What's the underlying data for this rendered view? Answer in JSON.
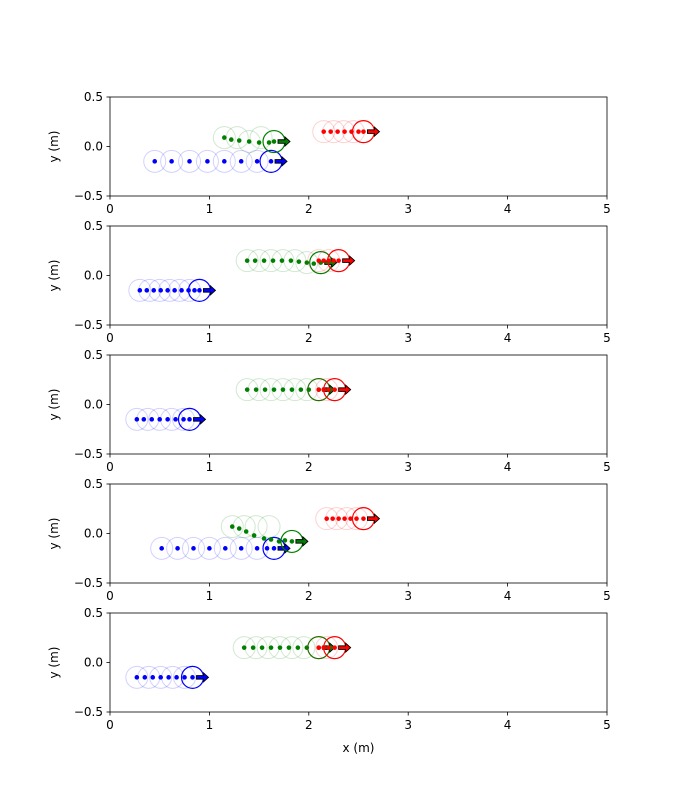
{
  "chart_data": [
    {
      "type": "scatter",
      "xlim": [
        0,
        5
      ],
      "ylim": [
        -0.5,
        0.5
      ],
      "xticks": [
        0,
        1,
        2,
        3,
        4,
        5
      ],
      "yticks": [
        0.5,
        0.0,
        -0.5
      ],
      "xlabel": "",
      "ylabel": "y (m)",
      "series": [
        {
          "color": "#0000ff",
          "y": -0.15,
          "x": [
            0.45,
            0.62,
            0.8,
            0.98,
            1.15,
            1.32,
            1.48,
            1.62
          ],
          "ghost_x": [
            0.45,
            0.62,
            0.8,
            0.98,
            1.15,
            1.32,
            1.48
          ]
        },
        {
          "color": "#008000",
          "y_path": [
            0.09,
            0.07,
            0.06,
            0.05,
            0.04,
            0.04,
            0.05
          ],
          "x": [
            1.15,
            1.22,
            1.3,
            1.4,
            1.5,
            1.6,
            1.65
          ],
          "ghost_x": [
            1.15,
            1.28,
            1.4,
            1.52
          ]
        },
        {
          "color": "#ff0000",
          "y": 0.15,
          "x": [
            2.15,
            2.22,
            2.29,
            2.36,
            2.43,
            2.5,
            2.55
          ],
          "ghost_x": [
            2.15,
            2.25,
            2.35,
            2.45
          ]
        }
      ]
    },
    {
      "type": "scatter",
      "xlim": [
        0,
        5
      ],
      "ylim": [
        -0.5,
        0.5
      ],
      "xticks": [
        0,
        1,
        2,
        3,
        4,
        5
      ],
      "yticks": [
        0.5,
        0.0,
        -0.5
      ],
      "xlabel": "",
      "ylabel": "y (m)",
      "series": [
        {
          "color": "#0000ff",
          "y": -0.15,
          "x": [
            0.3,
            0.37,
            0.44,
            0.51,
            0.58,
            0.65,
            0.72,
            0.79,
            0.85,
            0.9
          ],
          "ghost_x": [
            0.3,
            0.4,
            0.5,
            0.6,
            0.7,
            0.8
          ]
        },
        {
          "color": "#008000",
          "y_path": [
            0.15,
            0.15,
            0.15,
            0.15,
            0.15,
            0.15,
            0.14,
            0.13,
            0.12,
            0.13
          ],
          "x": [
            1.38,
            1.46,
            1.55,
            1.64,
            1.73,
            1.82,
            1.9,
            1.98,
            2.05,
            2.12
          ],
          "ghost_x": [
            1.38,
            1.5,
            1.62,
            1.74,
            1.86,
            1.98
          ]
        },
        {
          "color": "#ff0000",
          "y": 0.15,
          "x": [
            2.1,
            2.15,
            2.2,
            2.25,
            2.3
          ],
          "ghost_x": [
            2.1,
            2.2
          ]
        }
      ]
    },
    {
      "type": "scatter",
      "xlim": [
        0,
        5
      ],
      "ylim": [
        -0.5,
        0.5
      ],
      "xticks": [
        0,
        1,
        2,
        3,
        4,
        5
      ],
      "yticks": [
        0.5,
        0.0,
        -0.5
      ],
      "xlabel": "",
      "ylabel": "y (m)",
      "series": [
        {
          "color": "#0000ff",
          "y": -0.15,
          "x": [
            0.27,
            0.34,
            0.42,
            0.5,
            0.58,
            0.66,
            0.74,
            0.8
          ],
          "ghost_x": [
            0.27,
            0.38,
            0.5,
            0.62,
            0.74
          ]
        },
        {
          "color": "#008000",
          "y": 0.15,
          "x": [
            1.38,
            1.47,
            1.56,
            1.65,
            1.74,
            1.83,
            1.92,
            2.0,
            2.1
          ],
          "ghost_x": [
            1.38,
            1.5,
            1.62,
            1.74,
            1.86,
            1.98
          ]
        },
        {
          "color": "#ff0000",
          "y": 0.15,
          "x": [
            2.1,
            2.15,
            2.2,
            2.26
          ],
          "ghost_x": [
            2.1,
            2.18
          ]
        }
      ]
    },
    {
      "type": "scatter",
      "xlim": [
        0,
        5
      ],
      "ylim": [
        -0.5,
        0.5
      ],
      "xticks": [
        0,
        1,
        2,
        3,
        4,
        5
      ],
      "yticks": [
        0.5,
        0.0,
        -0.5
      ],
      "xlabel": "",
      "ylabel": "y (m)",
      "series": [
        {
          "color": "#0000ff",
          "y": -0.15,
          "x": [
            0.52,
            0.68,
            0.84,
            1.0,
            1.16,
            1.32,
            1.48,
            1.58,
            1.65
          ],
          "ghost_x": [
            0.52,
            0.68,
            0.84,
            1.0,
            1.16,
            1.32,
            1.48
          ]
        },
        {
          "color": "#008000",
          "y_path": [
            0.07,
            0.05,
            0.02,
            -0.02,
            -0.05,
            -0.06,
            -0.08,
            -0.07,
            -0.08
          ],
          "x": [
            1.23,
            1.3,
            1.37,
            1.45,
            1.55,
            1.62,
            1.7,
            1.76,
            1.83
          ],
          "ghost_x": [
            1.23,
            1.35,
            1.47,
            1.6
          ]
        },
        {
          "color": "#ff0000",
          "y": 0.15,
          "x": [
            2.18,
            2.24,
            2.3,
            2.36,
            2.42,
            2.48,
            2.55
          ],
          "ghost_x": [
            2.18,
            2.28,
            2.38,
            2.48
          ]
        }
      ]
    },
    {
      "type": "scatter",
      "xlim": [
        0,
        5
      ],
      "ylim": [
        -0.5,
        0.5
      ],
      "xticks": [
        0,
        1,
        2,
        3,
        4,
        5
      ],
      "yticks": [
        0.5,
        0.0,
        -0.5
      ],
      "xlabel": "x (m)",
      "ylabel": "y (m)",
      "series": [
        {
          "color": "#0000ff",
          "y": -0.15,
          "x": [
            0.27,
            0.35,
            0.43,
            0.51,
            0.59,
            0.67,
            0.75,
            0.83
          ],
          "ghost_x": [
            0.27,
            0.39,
            0.51,
            0.63,
            0.75
          ]
        },
        {
          "color": "#008000",
          "y": 0.15,
          "x": [
            1.35,
            1.44,
            1.53,
            1.62,
            1.71,
            1.8,
            1.89,
            1.98,
            2.1
          ],
          "ghost_x": [
            1.35,
            1.47,
            1.59,
            1.71,
            1.83,
            1.95
          ]
        },
        {
          "color": "#ff0000",
          "y": 0.15,
          "x": [
            2.1,
            2.15,
            2.2,
            2.26
          ],
          "ghost_x": [
            2.1,
            2.18
          ]
        }
      ]
    }
  ]
}
